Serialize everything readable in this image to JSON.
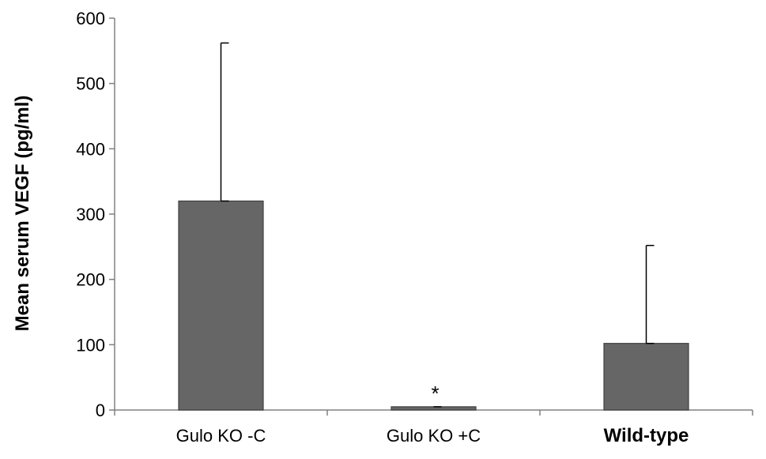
{
  "chart_data": {
    "type": "bar",
    "title": "",
    "xlabel": "",
    "ylabel": "Mean serum VEGF (pg/ml)",
    "ylim": [
      0,
      600
    ],
    "yticks": [
      0,
      100,
      200,
      300,
      400,
      500,
      600
    ],
    "categories": [
      "Gulo KO -C",
      "Gulo KO +C",
      "Wild-type"
    ],
    "category_bold": [
      false,
      false,
      true
    ],
    "values": [
      320,
      5,
      102
    ],
    "error_upper": [
      242,
      0,
      150
    ],
    "annotations": [
      {
        "category_index": 1,
        "text": "*"
      }
    ],
    "grid": false,
    "legend": "none",
    "colors": {
      "bar_fill": "#666666",
      "bar_stroke": "#3f3f3f",
      "axis": "#808080",
      "error_bar": "#000000",
      "text": "#000000"
    }
  }
}
